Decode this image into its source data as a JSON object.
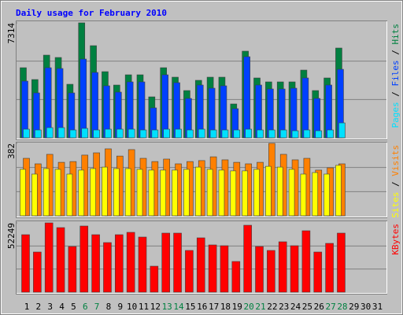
{
  "chart_data": {
    "type": "bar",
    "title": "Daily usage for February 2010",
    "categories": [
      "1",
      "2",
      "3",
      "4",
      "5",
      "6",
      "7",
      "8",
      "9",
      "10",
      "11",
      "12",
      "13",
      "14",
      "15",
      "16",
      "17",
      "18",
      "19",
      "20",
      "21",
      "22",
      "23",
      "24",
      "25",
      "26",
      "27",
      "28",
      "29",
      "30",
      "31"
    ],
    "weekend_days": [
      "6",
      "7",
      "13",
      "14",
      "20",
      "21",
      "27",
      "28"
    ],
    "weekend_color": "#008040",
    "legend_separator": " / ",
    "panels": [
      {
        "ylim": [
          0,
          7314
        ],
        "yticks": [
          7314
        ],
        "series": [
          {
            "name": "Hits",
            "color": "#008040",
            "values": [
              4459,
              3707,
              5260,
              5110,
              3406,
              7314,
              5861,
              4208,
              3356,
              4008,
              4008,
              2605,
              4459,
              3857,
              3006,
              3657,
              3857,
              3857,
              2154,
              5511,
              3807,
              3557,
              3557,
              3557,
              4308,
              3006,
              3807,
              5711,
              null,
              null,
              null
            ]
          },
          {
            "name": "Files",
            "color": "#0040ff",
            "values": [
              3607,
              2856,
              4459,
              4409,
              2856,
              5010,
              4158,
              3307,
              2906,
              3557,
              3557,
              1904,
              4008,
              3507,
              2505,
              3357,
              3156,
              3307,
              1854,
              5160,
              3357,
              3106,
              3106,
              3156,
              3807,
              2505,
              3357,
              4358,
              null,
              null,
              null
            ]
          },
          {
            "name": "Pages",
            "color": "#00e0ff",
            "values": [
              550,
              500,
              650,
              650,
              500,
              600,
              500,
              550,
              550,
              550,
              500,
              500,
              550,
              550,
              500,
              550,
              500,
              500,
              500,
              550,
              500,
              500,
              500,
              450,
              500,
              450,
              500,
              950,
              null,
              null,
              null
            ]
          }
        ]
      },
      {
        "ylim": [
          0,
          382
        ],
        "yticks": [
          382
        ],
        "series": [
          {
            "name": "Visits",
            "color": "#ff8000",
            "values": [
              303,
              274,
              324,
              282,
              286,
              320,
              332,
              353,
              315,
              349,
              303,
              286,
              299,
              274,
              286,
              291,
              311,
              295,
              282,
              274,
              282,
              382,
              324,
              295,
              303,
              241,
              253,
              274,
              null,
              null,
              null
            ]
          },
          {
            "name": "Sites",
            "color": "#ffff00",
            "values": [
              245,
              220,
              249,
              245,
              220,
              241,
              249,
              257,
              249,
              249,
              245,
              241,
              241,
              241,
              245,
              257,
              245,
              241,
              237,
              237,
              245,
              261,
              257,
              245,
              220,
              228,
              220,
              266,
              null,
              null,
              null
            ]
          }
        ]
      },
      {
        "ylim": [
          0,
          52249
        ],
        "yticks": [
          52249
        ],
        "series": [
          {
            "name": "KBytes",
            "color": "#ff0000",
            "values": [
              43340,
              30279,
              52249,
              48683,
              34435,
              49871,
              43340,
              37403,
              43340,
              45121,
              41559,
              19592,
              44528,
              44528,
              31466,
              40965,
              35622,
              35028,
              23154,
              50465,
              34435,
              31466,
              37997,
              35028,
              46309,
              30279,
              36809,
              44528,
              null,
              null,
              null
            ]
          }
        ]
      }
    ]
  }
}
